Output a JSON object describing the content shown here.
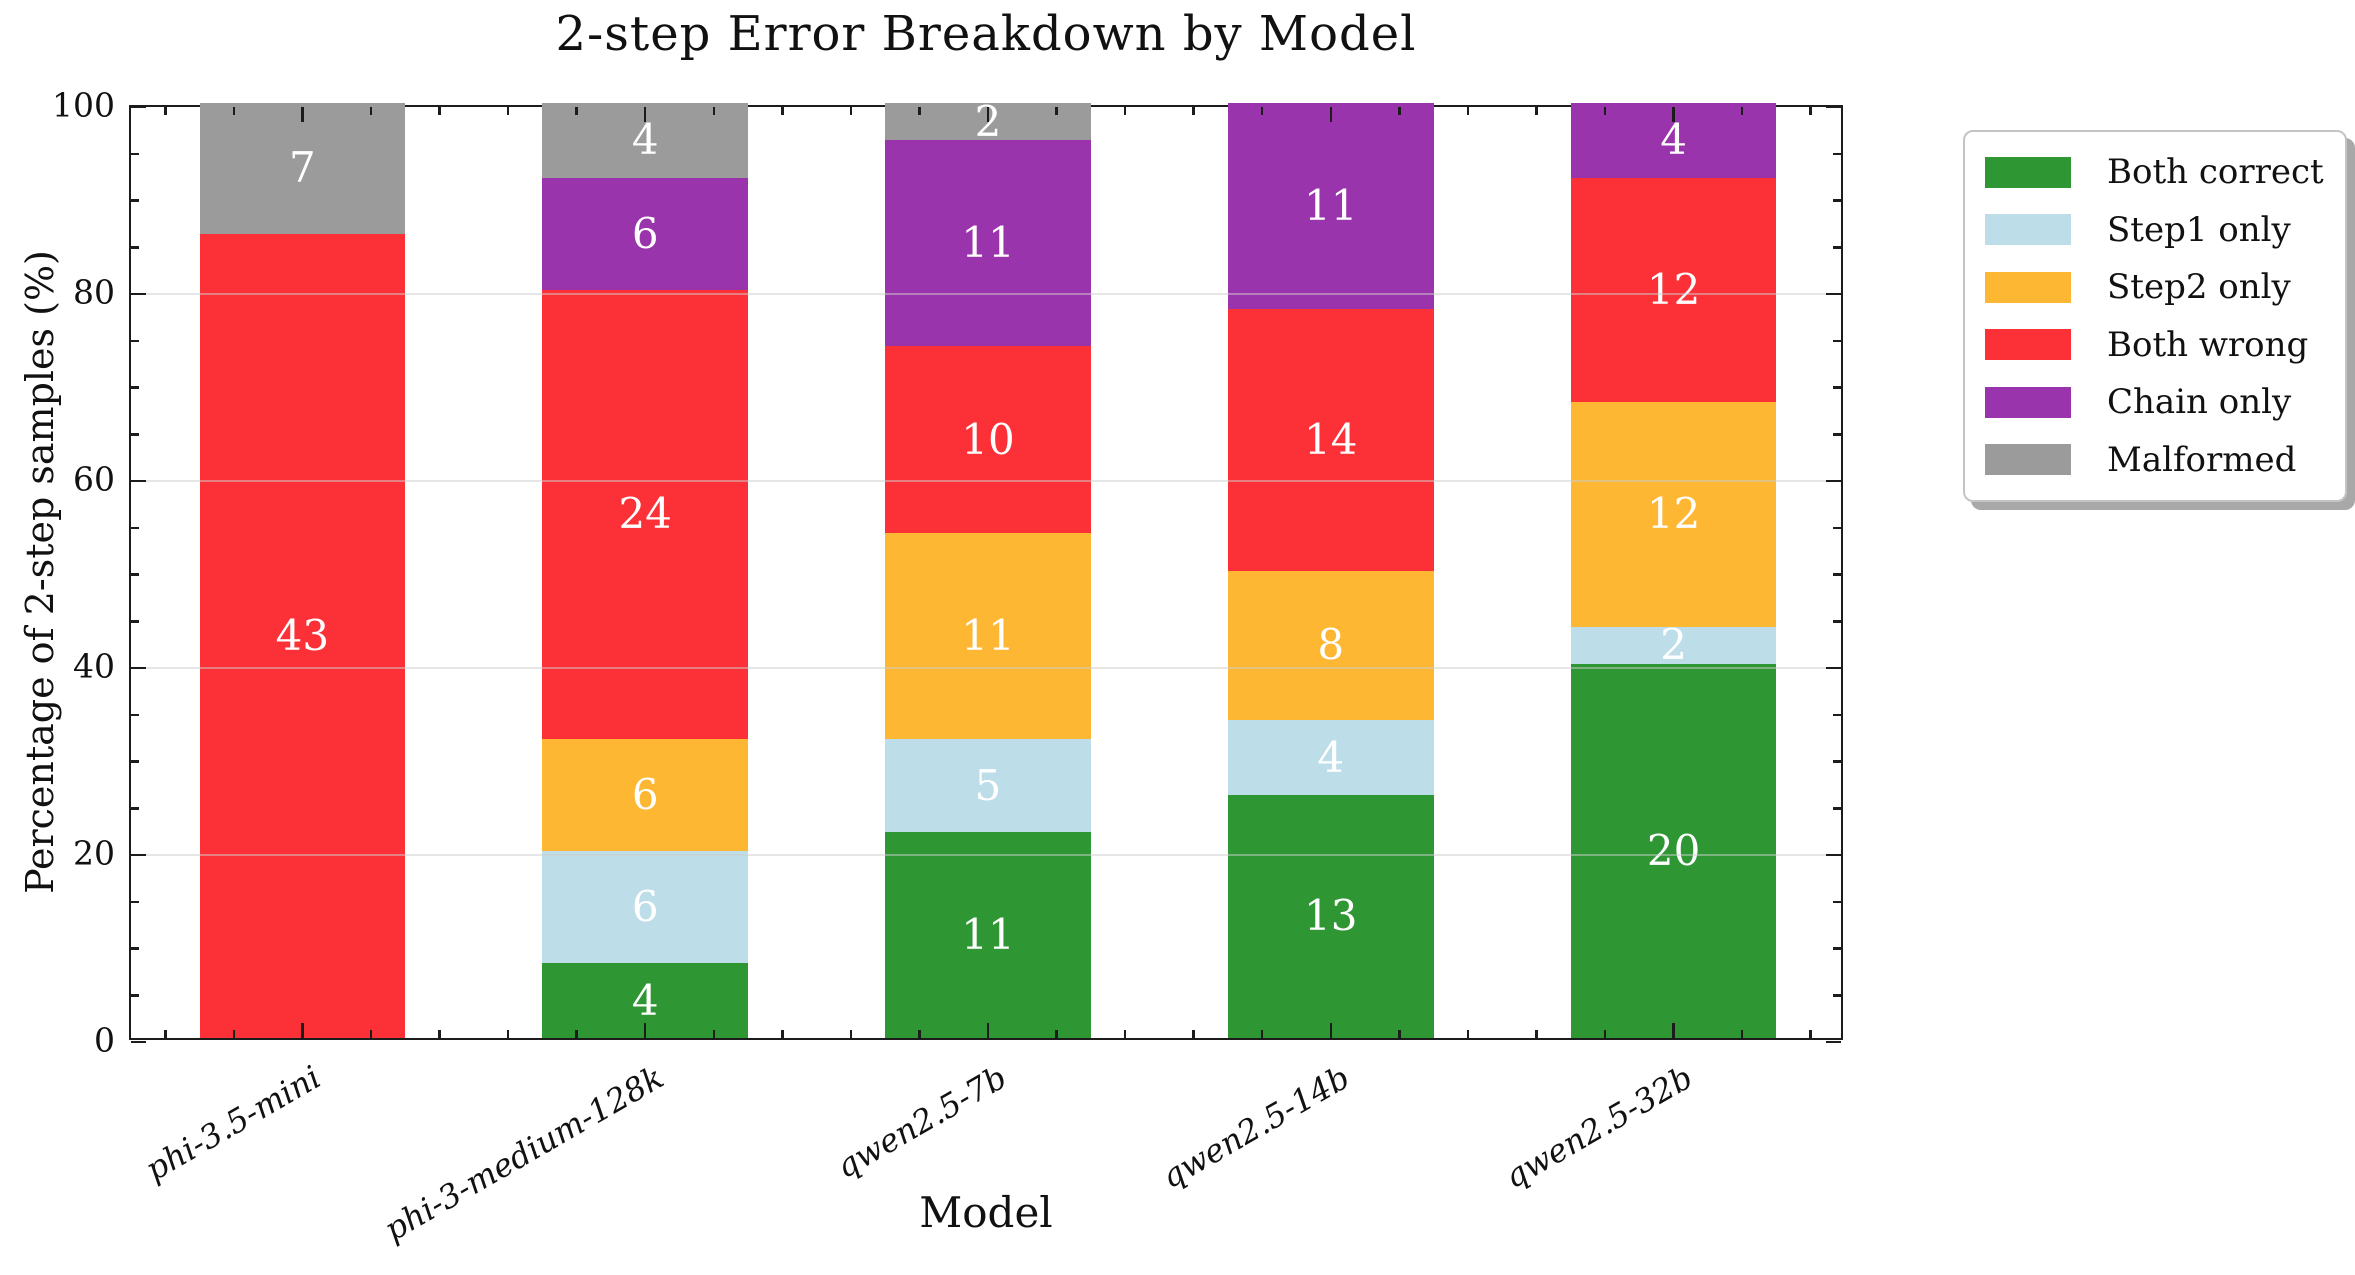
{
  "chart_data": {
    "type": "bar",
    "stacked": true,
    "title": "2-step Error Breakdown by Model",
    "xlabel": "Model",
    "ylabel": "Percentage of 2-step samples (%)",
    "ylim": [
      0,
      100
    ],
    "yticks": [
      0,
      20,
      40,
      60,
      80,
      100
    ],
    "y_minor_step": 5,
    "gridlines_at": [
      20,
      40,
      60,
      80
    ],
    "grid": "horizontal",
    "legend_position": "outside-right-top",
    "categories": [
      "phi-3.5-mini",
      "phi-3-medium-128k",
      "qwen2.5-7b",
      "qwen2.5-14b",
      "qwen2.5-32b"
    ],
    "values_are": "sample counts (bar height = count x 2 percent)",
    "percent_per_unit": 2,
    "series": [
      {
        "name": "Both correct",
        "color": "#2f9634",
        "values": [
          0,
          4,
          11,
          13,
          20
        ]
      },
      {
        "name": "Step1 only",
        "color": "#bddee9",
        "values": [
          0,
          6,
          5,
          4,
          2
        ]
      },
      {
        "name": "Step2 only",
        "color": "#fdb733",
        "values": [
          0,
          6,
          11,
          8,
          12
        ]
      },
      {
        "name": "Both wrong",
        "color": "#fc3137",
        "values": [
          43,
          24,
          10,
          14,
          12
        ]
      },
      {
        "name": "Chain only",
        "color": "#9a34ac",
        "values": [
          0,
          6,
          11,
          11,
          4
        ]
      },
      {
        "name": "Malformed",
        "color": "#9b9b9b",
        "values": [
          7,
          4,
          2,
          0,
          0
        ]
      }
    ]
  }
}
